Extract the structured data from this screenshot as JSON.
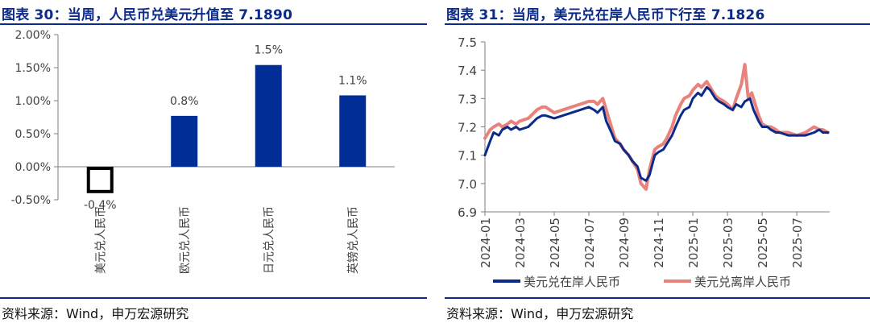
{
  "left": {
    "title": "图表 30：当周，人民币兑美元升值至 7.1890",
    "source": "资料来源：Wind，申万宏源研究",
    "chart_data": {
      "type": "bar",
      "categories": [
        "美元兑人民币",
        "欧元兑人民币",
        "日元兑人民币",
        "英镑兑人民币"
      ],
      "values": [
        -0.4,
        0.77,
        1.54,
        1.08
      ],
      "data_labels": [
        "-0.4%",
        "0.8%",
        "1.5%",
        "1.1%"
      ],
      "y_ticks": [
        "2.00%",
        "1.50%",
        "1.00%",
        "0.50%",
        "0.00%",
        "-0.50%"
      ],
      "ylim": [
        -0.5,
        2.0
      ],
      "grid": false,
      "colors": {
        "positive": "#002d96",
        "negative_fill": "#ffffff",
        "negative_stroke": "#000000"
      }
    }
  },
  "right": {
    "title": "图表 31：当周，美元兑在岸人民币下行至 7.1826",
    "source": "资料来源：Wind，申万宏源研究",
    "chart_data": {
      "type": "line",
      "y_ticks": [
        "7.5",
        "7.4",
        "7.3",
        "7.2",
        "7.1",
        "7.0",
        "6.9"
      ],
      "ylim": [
        6.9,
        7.5
      ],
      "x_ticks": [
        "2024-01",
        "2024-03",
        "2024-05",
        "2024-07",
        "2024-09",
        "2024-11",
        "2025-01",
        "2025-03",
        "2025-05",
        "2025-07"
      ],
      "x_tick_months": [
        0,
        2,
        4,
        6,
        8,
        10,
        12,
        14,
        16,
        18
      ],
      "xlim_months": [
        0,
        19.9
      ],
      "grid": false,
      "legend_position": "bottom",
      "series": [
        {
          "name": "美元兑在岸人民币",
          "color": "#0b2a8a",
          "x": [
            0,
            0.3,
            0.5,
            0.8,
            1.0,
            1.3,
            1.5,
            1.8,
            2.0,
            2.5,
            3.0,
            3.3,
            3.5,
            4.0,
            4.5,
            5.0,
            5.5,
            6.0,
            6.3,
            6.5,
            6.8,
            7.0,
            7.3,
            7.5,
            7.8,
            8.0,
            8.3,
            8.5,
            8.8,
            9.0,
            9.3,
            9.5,
            9.8,
            10.0,
            10.3,
            10.5,
            10.8,
            11.0,
            11.3,
            11.5,
            11.8,
            12.0,
            12.3,
            12.5,
            12.8,
            13.0,
            13.3,
            13.5,
            13.8,
            14.0,
            14.3,
            14.5,
            14.8,
            15.0,
            15.3,
            15.5,
            15.8,
            16.0,
            16.3,
            16.5,
            16.8,
            17.0,
            17.5,
            18.0,
            18.5,
            19.0,
            19.3,
            19.5,
            19.8
          ],
          "y": [
            7.1,
            7.15,
            7.18,
            7.17,
            7.19,
            7.2,
            7.19,
            7.2,
            7.19,
            7.2,
            7.23,
            7.24,
            7.24,
            7.23,
            7.24,
            7.25,
            7.26,
            7.27,
            7.26,
            7.25,
            7.27,
            7.22,
            7.18,
            7.15,
            7.14,
            7.12,
            7.1,
            7.08,
            7.06,
            7.02,
            7.01,
            7.03,
            7.1,
            7.11,
            7.12,
            7.14,
            7.17,
            7.2,
            7.24,
            7.26,
            7.27,
            7.3,
            7.32,
            7.31,
            7.34,
            7.33,
            7.3,
            7.29,
            7.28,
            7.27,
            7.26,
            7.28,
            7.27,
            7.29,
            7.3,
            7.26,
            7.22,
            7.2,
            7.2,
            7.19,
            7.18,
            7.18,
            7.17,
            7.17,
            7.17,
            7.18,
            7.19,
            7.18,
            7.18
          ]
        },
        {
          "name": "美元兑离岸人民币",
          "color": "#e8827a",
          "x": [
            0,
            0.3,
            0.5,
            0.8,
            1.0,
            1.3,
            1.5,
            1.8,
            2.0,
            2.5,
            3.0,
            3.3,
            3.5,
            4.0,
            4.5,
            5.0,
            5.5,
            6.0,
            6.3,
            6.5,
            6.8,
            7.0,
            7.3,
            7.5,
            7.8,
            8.0,
            8.3,
            8.5,
            8.8,
            9.0,
            9.3,
            9.5,
            9.8,
            10.0,
            10.3,
            10.5,
            10.8,
            11.0,
            11.3,
            11.5,
            11.8,
            12.0,
            12.3,
            12.5,
            12.8,
            13.0,
            13.3,
            13.5,
            13.8,
            14.0,
            14.3,
            14.5,
            14.8,
            15.0,
            15.2,
            15.4,
            15.6,
            15.8,
            16.0,
            16.3,
            16.5,
            16.8,
            17.0,
            17.5,
            18.0,
            18.5,
            19.0,
            19.3,
            19.5,
            19.8
          ],
          "y": [
            7.16,
            7.19,
            7.2,
            7.21,
            7.2,
            7.21,
            7.22,
            7.21,
            7.22,
            7.23,
            7.26,
            7.27,
            7.27,
            7.25,
            7.26,
            7.27,
            7.28,
            7.29,
            7.29,
            7.28,
            7.3,
            7.26,
            7.2,
            7.16,
            7.14,
            7.12,
            7.1,
            7.08,
            7.05,
            7.0,
            6.98,
            7.05,
            7.12,
            7.13,
            7.14,
            7.16,
            7.2,
            7.24,
            7.28,
            7.3,
            7.31,
            7.33,
            7.35,
            7.34,
            7.36,
            7.34,
            7.31,
            7.3,
            7.29,
            7.28,
            7.26,
            7.3,
            7.35,
            7.42,
            7.3,
            7.32,
            7.28,
            7.24,
            7.21,
            7.2,
            7.2,
            7.19,
            7.18,
            7.18,
            7.17,
            7.18,
            7.2,
            7.19,
            7.19,
            7.18
          ]
        }
      ]
    }
  }
}
